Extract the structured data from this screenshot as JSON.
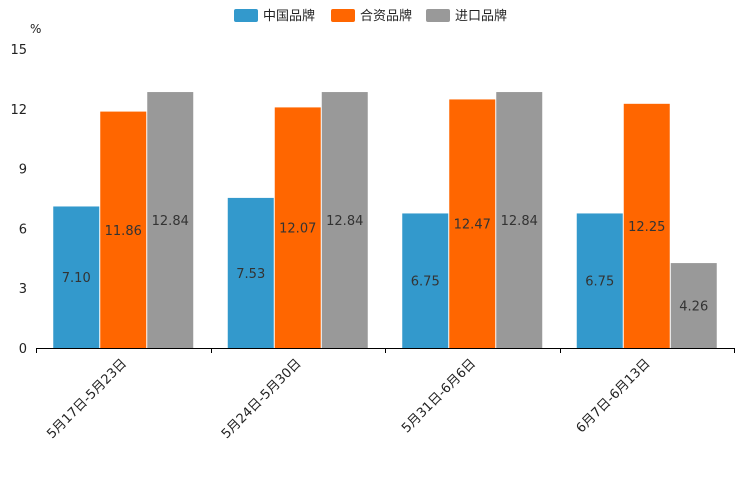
{
  "chart_data": {
    "type": "bar",
    "title": "",
    "xlabel": "",
    "ylabel": "%",
    "ylim": [
      0,
      15
    ],
    "yticks": [
      "0",
      "3",
      "6",
      "9",
      "12",
      "15"
    ],
    "categories": [
      "5月17日-5月23日",
      "5月24日-5月30日",
      "5月31日-6月6日",
      "6月7日-6月13日"
    ],
    "series": [
      {
        "name": "中国品牌",
        "color": "#3399cc",
        "values": [
          7.1,
          7.53,
          6.75,
          6.75
        ],
        "labels": [
          "7.10",
          "7.53",
          "6.75",
          "6.75"
        ]
      },
      {
        "name": "合资品牌",
        "color": "#ff6600",
        "values": [
          11.86,
          12.07,
          12.47,
          12.25
        ],
        "labels": [
          "11.86",
          "12.07",
          "12.47",
          "12.25"
        ]
      },
      {
        "name": "进口品牌",
        "color": "#999999",
        "values": [
          12.84,
          12.84,
          12.84,
          4.26
        ],
        "labels": [
          "12.84",
          "12.84",
          "12.84",
          "4.26"
        ]
      }
    ],
    "legend": "top-center",
    "grid": false
  }
}
